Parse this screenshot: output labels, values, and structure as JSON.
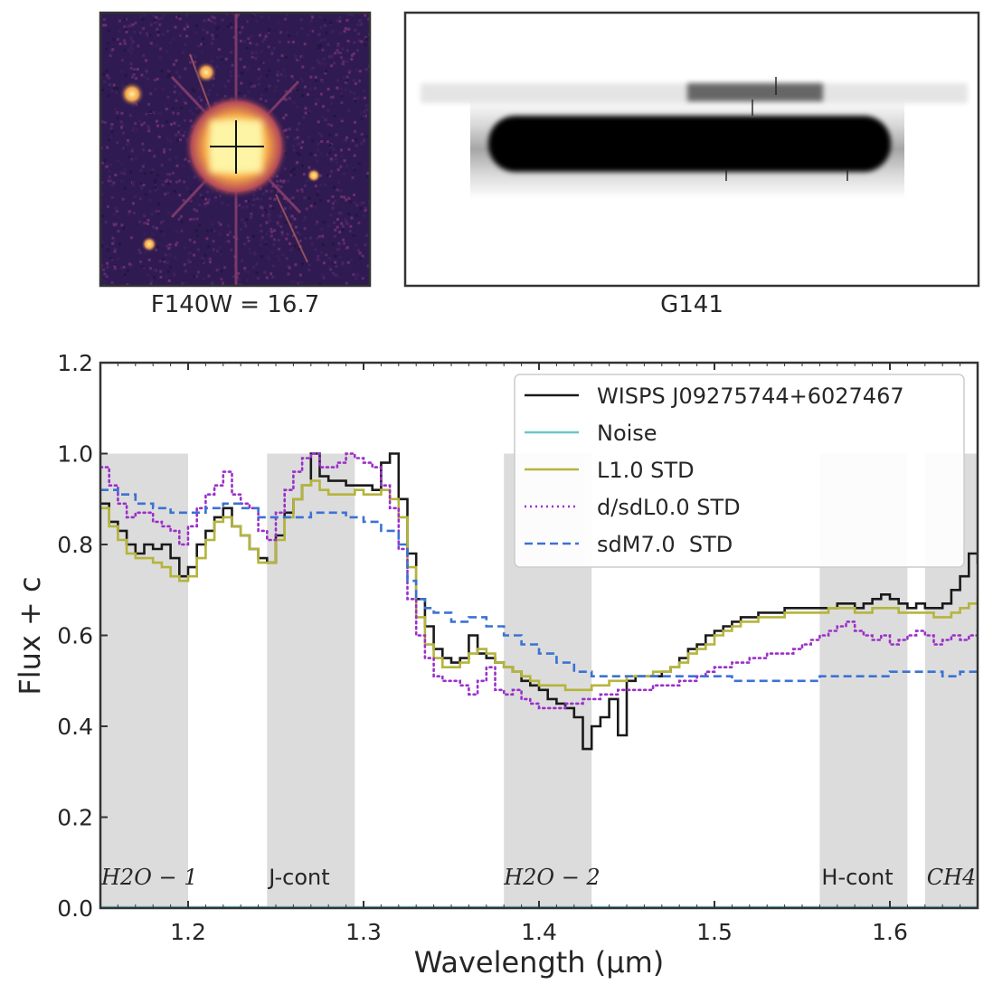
{
  "panels": {
    "image_caption": "F140W = 16.7",
    "spectrum2d_caption": "G141"
  },
  "colors": {
    "band_fill": "#dcdcdc",
    "band_fill_light": "#f2f2f2",
    "cmap_dark": "#2a1a4e",
    "cmap_bright": "#fcef9a"
  },
  "chart_data": {
    "type": "line",
    "xlabel": "Wavelength (μm)",
    "ylabel": "Flux + c",
    "xlim": [
      1.15,
      1.65
    ],
    "ylim": [
      0.0,
      1.2
    ],
    "xticks": [
      "1.2",
      "1.3",
      "1.4",
      "1.5",
      "1.6"
    ],
    "yticks": [
      "0.0",
      "0.2",
      "0.4",
      "0.6",
      "0.8",
      "1.0",
      "1.2"
    ],
    "grid": false,
    "legend_position": "top-right",
    "bands": [
      {
        "label": "H2O − 1",
        "math": true,
        "x": [
          1.15,
          1.2
        ],
        "y": [
          0.0,
          1.0
        ]
      },
      {
        "label": "J-cont",
        "math": false,
        "x": [
          1.245,
          1.295
        ],
        "y": [
          0.0,
          1.0
        ]
      },
      {
        "label": "H2O − 2",
        "math": true,
        "x": [
          1.38,
          1.43
        ],
        "y": [
          0.0,
          1.0
        ]
      },
      {
        "label": "H-cont",
        "math": false,
        "x": [
          1.56,
          1.61
        ],
        "y": [
          0.0,
          1.0
        ]
      },
      {
        "label": "CH4",
        "math": true,
        "x": [
          1.62,
          1.65
        ],
        "y": [
          0.0,
          1.0
        ]
      }
    ],
    "series": [
      {
        "name": "WISPS J09275744+6027467",
        "color": "#1a1a1a",
        "style": "solid",
        "step": true,
        "x": [
          1.15,
          1.155,
          1.16,
          1.165,
          1.17,
          1.175,
          1.18,
          1.185,
          1.19,
          1.195,
          1.2,
          1.205,
          1.21,
          1.215,
          1.22,
          1.225,
          1.23,
          1.235,
          1.24,
          1.245,
          1.25,
          1.255,
          1.26,
          1.265,
          1.27,
          1.275,
          1.28,
          1.285,
          1.29,
          1.295,
          1.3,
          1.305,
          1.31,
          1.315,
          1.32,
          1.325,
          1.33,
          1.335,
          1.34,
          1.345,
          1.35,
          1.355,
          1.36,
          1.365,
          1.37,
          1.375,
          1.38,
          1.385,
          1.39,
          1.395,
          1.4,
          1.405,
          1.41,
          1.415,
          1.42,
          1.425,
          1.43,
          1.435,
          1.44,
          1.445,
          1.45,
          1.455,
          1.46,
          1.465,
          1.47,
          1.475,
          1.48,
          1.485,
          1.49,
          1.495,
          1.5,
          1.505,
          1.51,
          1.515,
          1.52,
          1.525,
          1.53,
          1.535,
          1.54,
          1.545,
          1.55,
          1.555,
          1.56,
          1.565,
          1.57,
          1.575,
          1.58,
          1.585,
          1.59,
          1.595,
          1.6,
          1.605,
          1.61,
          1.615,
          1.62,
          1.625,
          1.63,
          1.635,
          1.64,
          1.645,
          1.65
        ],
        "y": [
          0.89,
          0.85,
          0.83,
          0.8,
          0.78,
          0.8,
          0.79,
          0.8,
          0.77,
          0.73,
          0.75,
          0.8,
          0.83,
          0.86,
          0.88,
          0.84,
          0.82,
          0.79,
          0.77,
          0.76,
          0.82,
          0.87,
          0.9,
          0.93,
          1.0,
          0.95,
          0.94,
          0.94,
          0.93,
          0.93,
          0.93,
          0.92,
          0.98,
          1.0,
          0.9,
          0.78,
          0.68,
          0.62,
          0.57,
          0.55,
          0.54,
          0.55,
          0.6,
          0.56,
          0.55,
          0.54,
          0.53,
          0.52,
          0.5,
          0.49,
          0.48,
          0.46,
          0.45,
          0.44,
          0.42,
          0.35,
          0.4,
          0.42,
          0.46,
          0.38,
          0.5,
          0.51,
          0.51,
          0.51,
          0.52,
          0.53,
          0.55,
          0.57,
          0.58,
          0.6,
          0.61,
          0.62,
          0.63,
          0.64,
          0.64,
          0.65,
          0.65,
          0.65,
          0.66,
          0.66,
          0.66,
          0.66,
          0.66,
          0.66,
          0.67,
          0.67,
          0.66,
          0.67,
          0.68,
          0.69,
          0.68,
          0.67,
          0.66,
          0.67,
          0.66,
          0.66,
          0.67,
          0.7,
          0.73,
          0.78,
          0.76
        ]
      },
      {
        "name": "Noise",
        "color": "#6cc5cc",
        "style": "solid",
        "step": true,
        "x": [
          1.15,
          1.65
        ],
        "y": [
          0.002,
          0.002
        ]
      },
      {
        "name": "L1.0 STD",
        "color": "#b5b43c",
        "style": "solid",
        "step": true,
        "x": [
          1.15,
          1.155,
          1.16,
          1.165,
          1.17,
          1.175,
          1.18,
          1.185,
          1.19,
          1.195,
          1.2,
          1.205,
          1.21,
          1.215,
          1.22,
          1.225,
          1.23,
          1.235,
          1.24,
          1.245,
          1.25,
          1.255,
          1.26,
          1.265,
          1.27,
          1.275,
          1.28,
          1.285,
          1.29,
          1.295,
          1.3,
          1.305,
          1.31,
          1.315,
          1.32,
          1.325,
          1.33,
          1.335,
          1.34,
          1.345,
          1.35,
          1.355,
          1.36,
          1.365,
          1.37,
          1.375,
          1.38,
          1.385,
          1.39,
          1.395,
          1.4,
          1.405,
          1.41,
          1.415,
          1.42,
          1.425,
          1.43,
          1.435,
          1.44,
          1.445,
          1.45,
          1.455,
          1.46,
          1.465,
          1.47,
          1.475,
          1.48,
          1.485,
          1.49,
          1.495,
          1.5,
          1.505,
          1.51,
          1.515,
          1.52,
          1.525,
          1.53,
          1.535,
          1.54,
          1.545,
          1.55,
          1.555,
          1.56,
          1.565,
          1.57,
          1.575,
          1.58,
          1.585,
          1.59,
          1.595,
          1.6,
          1.605,
          1.61,
          1.615,
          1.62,
          1.625,
          1.63,
          1.635,
          1.64,
          1.645,
          1.65
        ],
        "y": [
          0.88,
          0.84,
          0.81,
          0.78,
          0.77,
          0.77,
          0.76,
          0.75,
          0.73,
          0.72,
          0.73,
          0.77,
          0.81,
          0.85,
          0.86,
          0.84,
          0.82,
          0.79,
          0.76,
          0.76,
          0.81,
          0.86,
          0.9,
          0.93,
          0.94,
          0.92,
          0.91,
          0.91,
          0.91,
          0.92,
          0.91,
          0.91,
          0.92,
          0.9,
          0.86,
          0.75,
          0.64,
          0.58,
          0.55,
          0.53,
          0.53,
          0.54,
          0.56,
          0.57,
          0.56,
          0.54,
          0.53,
          0.52,
          0.51,
          0.5,
          0.49,
          0.49,
          0.49,
          0.48,
          0.48,
          0.48,
          0.49,
          0.49,
          0.5,
          0.5,
          0.51,
          0.51,
          0.51,
          0.52,
          0.52,
          0.53,
          0.54,
          0.56,
          0.57,
          0.58,
          0.6,
          0.61,
          0.62,
          0.63,
          0.63,
          0.64,
          0.64,
          0.64,
          0.65,
          0.65,
          0.65,
          0.65,
          0.65,
          0.66,
          0.66,
          0.66,
          0.65,
          0.65,
          0.66,
          0.66,
          0.66,
          0.65,
          0.65,
          0.65,
          0.65,
          0.64,
          0.64,
          0.65,
          0.66,
          0.67,
          0.68
        ]
      },
      {
        "name": "d/sdL0.0 STD",
        "color": "#9b30c9",
        "style": "dotted",
        "step": true,
        "x": [
          1.15,
          1.155,
          1.16,
          1.165,
          1.17,
          1.175,
          1.18,
          1.185,
          1.19,
          1.195,
          1.2,
          1.205,
          1.21,
          1.215,
          1.22,
          1.225,
          1.23,
          1.235,
          1.24,
          1.245,
          1.25,
          1.255,
          1.26,
          1.265,
          1.27,
          1.275,
          1.28,
          1.285,
          1.29,
          1.295,
          1.3,
          1.305,
          1.31,
          1.315,
          1.32,
          1.325,
          1.33,
          1.335,
          1.34,
          1.345,
          1.35,
          1.355,
          1.36,
          1.365,
          1.37,
          1.375,
          1.38,
          1.385,
          1.39,
          1.395,
          1.4,
          1.405,
          1.41,
          1.415,
          1.42,
          1.425,
          1.43,
          1.435,
          1.44,
          1.445,
          1.45,
          1.455,
          1.46,
          1.465,
          1.47,
          1.475,
          1.48,
          1.485,
          1.49,
          1.495,
          1.5,
          1.505,
          1.51,
          1.515,
          1.52,
          1.525,
          1.53,
          1.535,
          1.54,
          1.545,
          1.55,
          1.555,
          1.56,
          1.565,
          1.57,
          1.575,
          1.58,
          1.585,
          1.59,
          1.595,
          1.6,
          1.605,
          1.61,
          1.615,
          1.62,
          1.625,
          1.63,
          1.635,
          1.64,
          1.645,
          1.65
        ],
        "y": [
          0.97,
          0.93,
          0.89,
          0.86,
          0.87,
          0.87,
          0.85,
          0.84,
          0.83,
          0.8,
          0.84,
          0.88,
          0.91,
          0.93,
          0.96,
          0.91,
          0.89,
          0.88,
          0.83,
          0.81,
          0.87,
          0.92,
          0.96,
          0.99,
          1.0,
          0.97,
          0.97,
          0.98,
          1.0,
          0.99,
          0.98,
          0.97,
          0.93,
          0.88,
          0.79,
          0.68,
          0.6,
          0.55,
          0.51,
          0.5,
          0.5,
          0.49,
          0.47,
          0.5,
          0.53,
          0.48,
          0.47,
          0.48,
          0.46,
          0.45,
          0.44,
          0.44,
          0.44,
          0.45,
          0.45,
          0.46,
          0.46,
          0.47,
          0.47,
          0.48,
          0.48,
          0.48,
          0.48,
          0.49,
          0.49,
          0.49,
          0.5,
          0.5,
          0.51,
          0.52,
          0.53,
          0.53,
          0.54,
          0.54,
          0.55,
          0.55,
          0.56,
          0.56,
          0.56,
          0.57,
          0.58,
          0.59,
          0.6,
          0.61,
          0.62,
          0.63,
          0.61,
          0.6,
          0.59,
          0.6,
          0.58,
          0.59,
          0.6,
          0.61,
          0.6,
          0.58,
          0.59,
          0.6,
          0.59,
          0.6,
          0.61
        ]
      },
      {
        "name": "sdM7.0  STD",
        "color": "#3b72d4",
        "style": "dashed",
        "step": true,
        "x": [
          1.15,
          1.16,
          1.17,
          1.18,
          1.19,
          1.2,
          1.21,
          1.22,
          1.23,
          1.24,
          1.25,
          1.26,
          1.27,
          1.28,
          1.29,
          1.3,
          1.31,
          1.32,
          1.325,
          1.33,
          1.335,
          1.34,
          1.35,
          1.36,
          1.37,
          1.38,
          1.39,
          1.4,
          1.41,
          1.42,
          1.43,
          1.44,
          1.45,
          1.46,
          1.47,
          1.48,
          1.49,
          1.5,
          1.51,
          1.52,
          1.53,
          1.54,
          1.55,
          1.56,
          1.57,
          1.58,
          1.59,
          1.6,
          1.61,
          1.62,
          1.63,
          1.64,
          1.65
        ],
        "y": [
          0.92,
          0.91,
          0.89,
          0.88,
          0.87,
          0.87,
          0.88,
          0.89,
          0.88,
          0.86,
          0.86,
          0.86,
          0.87,
          0.87,
          0.86,
          0.85,
          0.83,
          0.8,
          0.72,
          0.68,
          0.66,
          0.65,
          0.63,
          0.64,
          0.62,
          0.6,
          0.58,
          0.56,
          0.54,
          0.52,
          0.51,
          0.51,
          0.51,
          0.51,
          0.51,
          0.51,
          0.51,
          0.51,
          0.5,
          0.5,
          0.5,
          0.5,
          0.5,
          0.51,
          0.51,
          0.51,
          0.51,
          0.52,
          0.52,
          0.52,
          0.51,
          0.52,
          0.52
        ]
      }
    ]
  }
}
